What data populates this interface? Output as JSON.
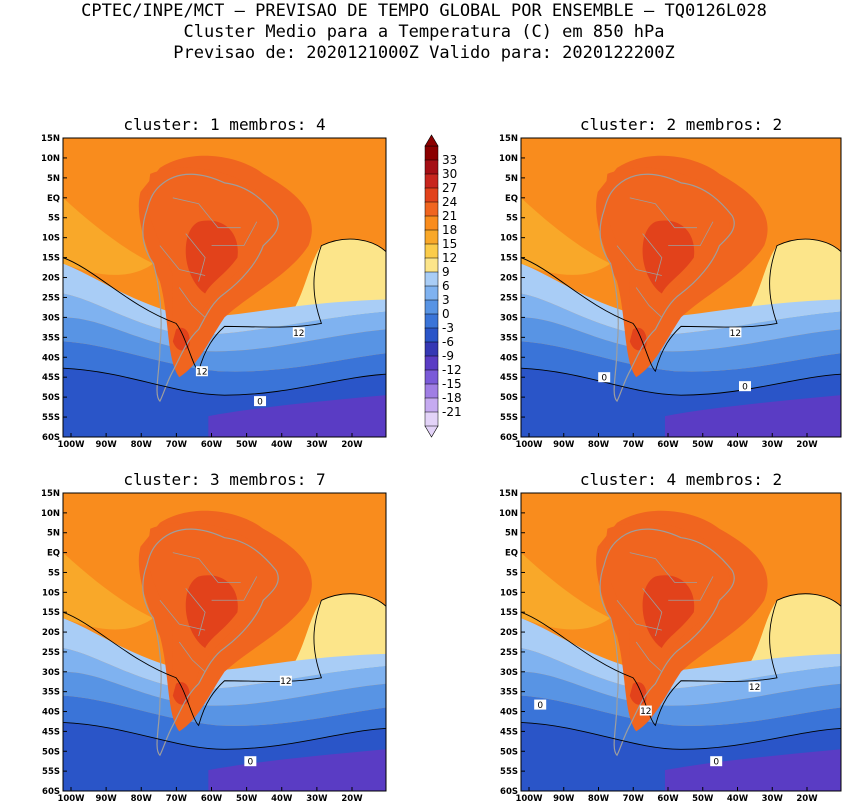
{
  "header": {
    "line1": "CPTEC/INPE/MCT – PREVISAO DE TEMPO GLOBAL POR ENSEMBLE – TQ0126L028",
    "line2": "Cluster Medio para a Temperatura (C) em 850 hPa",
    "line3": "Previsao de: 2020121000Z   Valido para: 2020122200Z"
  },
  "panels": [
    {
      "title": "cluster: 1  membros: 4",
      "contour_labels": [
        "12",
        "12",
        "0"
      ]
    },
    {
      "title": "cluster: 2  membros: 2",
      "contour_labels": [
        "12",
        "0",
        "0"
      ]
    },
    {
      "title": "cluster: 3  membros: 7",
      "contour_labels": [
        "12",
        "0"
      ]
    },
    {
      "title": "cluster: 4  membros: 2",
      "contour_labels": [
        "12",
        "12",
        "0",
        "0"
      ]
    }
  ],
  "lat_labels": [
    "15N",
    "10N",
    "5N",
    "EQ",
    "5S",
    "10S",
    "15S",
    "20S",
    "25S",
    "30S",
    "35S",
    "40S",
    "45S",
    "50S",
    "55S",
    "60S"
  ],
  "lon_labels": [
    "100W",
    "90W",
    "80W",
    "70W",
    "60W",
    "50W",
    "40W",
    "30W",
    "20W"
  ],
  "colorbar": {
    "labels": [
      "33",
      "30",
      "27",
      "24",
      "21",
      "18",
      "15",
      "12",
      "9",
      "6",
      "3",
      "0",
      "-3",
      "-6",
      "-9",
      "-12",
      "-15",
      "-18",
      "-21"
    ],
    "colors": [
      "#8b0000",
      "#a50f15",
      "#c8261e",
      "#e2421b",
      "#f0651f",
      "#f98c1d",
      "#f9a829",
      "#fbcc4a",
      "#fce58a",
      "#a9cdf6",
      "#7fb2f0",
      "#5894e4",
      "#3a74d8",
      "#2a55c8",
      "#3538b4",
      "#5a3cc4",
      "#7a5ad8",
      "#a07ee4",
      "#c5aaf0",
      "#e3d3f8"
    ]
  },
  "colors": {
    "warm_max": "#e2421b",
    "warm_high": "#f0651f",
    "warm_mid": "#f98c1d",
    "warm_low": "#f9a829",
    "mild": "#fbcc4a",
    "pale": "#fce58a",
    "cool1": "#a9cdf6",
    "cool2": "#7fb2f0",
    "cool3": "#5894e4",
    "cold1": "#3a74d8",
    "cold2": "#2a55c8",
    "cold3": "#5a3cc4",
    "coast": "#9e9e9e"
  }
}
